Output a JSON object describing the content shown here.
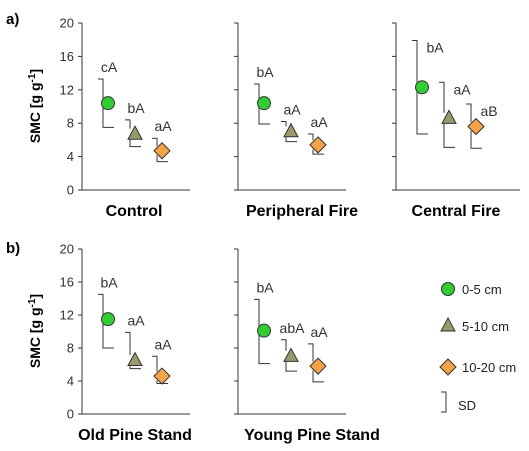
{
  "figure": {
    "panel_labels": [
      "a)",
      "b)"
    ],
    "ylabel_main": "SMC [g g",
    "ylabel_sup": "-1",
    "ylabel_end": "]"
  },
  "legend": {
    "items": [
      {
        "label": "0-5 cm",
        "marker": "circle",
        "color": "#33cc33"
      },
      {
        "label": "5-10 cm",
        "marker": "triangle",
        "color": "#99996b"
      },
      {
        "label": "10-20 cm",
        "marker": "diamond",
        "color": "#f5a347"
      }
    ],
    "sd_label": "SD"
  },
  "chart_data": [
    {
      "type": "scatter",
      "title": "Control",
      "ylim": [
        0,
        20
      ],
      "yticks": [
        0,
        4,
        8,
        12,
        16,
        20
      ],
      "series": [
        {
          "name": "0-5 cm",
          "value": 10.4,
          "sd_upper": 13.3,
          "sd_lower": 7.5,
          "label": "cA"
        },
        {
          "name": "5-10 cm",
          "value": 6.8,
          "sd_upper": 8.4,
          "sd_lower": 5.2,
          "label": "bA"
        },
        {
          "name": "10-20 cm",
          "value": 4.7,
          "sd_upper": 6.2,
          "sd_lower": 3.4,
          "label": "aA"
        }
      ]
    },
    {
      "type": "scatter",
      "title": "Peripheral Fire",
      "ylim": [
        0,
        20
      ],
      "yticks": [
        0,
        4,
        8,
        12,
        16,
        20
      ],
      "series": [
        {
          "name": "0-5 cm",
          "value": 10.4,
          "sd_upper": 12.7,
          "sd_lower": 7.9,
          "label": "bA"
        },
        {
          "name": "5-10 cm",
          "value": 7.1,
          "sd_upper": 8.2,
          "sd_lower": 5.8,
          "label": "aA"
        },
        {
          "name": "10-20 cm",
          "value": 5.4,
          "sd_upper": 6.7,
          "sd_lower": 4.3,
          "label": "aA"
        }
      ]
    },
    {
      "type": "scatter",
      "title": "Central Fire",
      "ylim": [
        0,
        20
      ],
      "yticks": [
        0,
        4,
        8,
        12,
        16,
        20
      ],
      "series": [
        {
          "name": "0-5 cm",
          "value": 12.3,
          "sd_upper": 17.9,
          "sd_lower": 6.7,
          "label": "bA"
        },
        {
          "name": "5-10 cm",
          "value": 8.7,
          "sd_upper": 12.9,
          "sd_lower": 5.1,
          "label": "aA"
        },
        {
          "name": "10-20 cm",
          "value": 7.6,
          "sd_upper": 10.3,
          "sd_lower": 5.0,
          "label": "aB"
        }
      ]
    },
    {
      "type": "scatter",
      "title": "Old Pine Stand",
      "ylim": [
        0,
        20
      ],
      "yticks": [
        0,
        4,
        8,
        12,
        16,
        20
      ],
      "series": [
        {
          "name": "0-5 cm",
          "value": 11.5,
          "sd_upper": 14.5,
          "sd_lower": 8.0,
          "label": "bA"
        },
        {
          "name": "5-10 cm",
          "value": 6.6,
          "sd_upper": 9.9,
          "sd_lower": 5.5,
          "label": "aA"
        },
        {
          "name": "10-20 cm",
          "value": 4.6,
          "sd_upper": 7.0,
          "sd_lower": 3.7,
          "label": "aA"
        }
      ]
    },
    {
      "type": "scatter",
      "title": "Young Pine Stand",
      "ylim": [
        0,
        20
      ],
      "yticks": [
        0,
        4,
        8,
        12,
        16,
        20
      ],
      "series": [
        {
          "name": "0-5 cm",
          "value": 10.1,
          "sd_upper": 13.9,
          "sd_lower": 6.1,
          "label": "bA"
        },
        {
          "name": "5-10 cm",
          "value": 7.1,
          "sd_upper": 9.0,
          "sd_lower": 5.2,
          "label": "abA"
        },
        {
          "name": "10-20 cm",
          "value": 5.8,
          "sd_upper": 8.5,
          "sd_lower": 3.9,
          "label": "aA"
        }
      ]
    }
  ]
}
